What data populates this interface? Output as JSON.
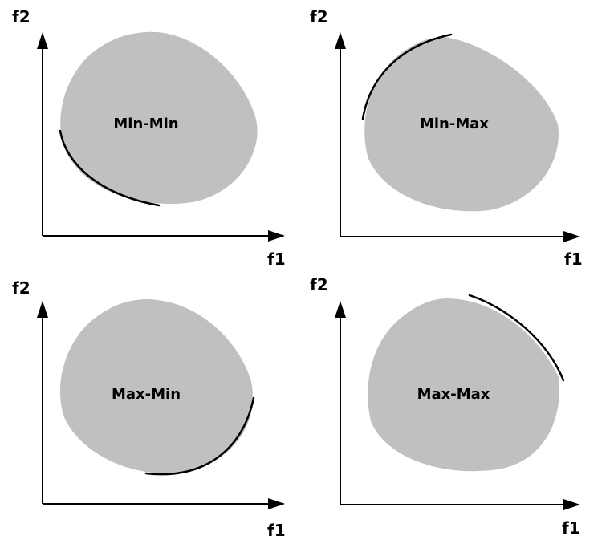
{
  "colors": {
    "region_fill": "#c0c0c0",
    "axis": "#000000",
    "front": "#000000"
  },
  "panels": [
    {
      "region_label": "Min-Min",
      "x_axis_label": "f1",
      "y_axis_label": "f2"
    },
    {
      "region_label": "Min-Max",
      "x_axis_label": "f1",
      "y_axis_label": "f2"
    },
    {
      "region_label": "Max-Min",
      "x_axis_label": "f1",
      "y_axis_label": "f2"
    },
    {
      "region_label": "Max-Max",
      "x_axis_label": "f1",
      "y_axis_label": "f2"
    }
  ]
}
